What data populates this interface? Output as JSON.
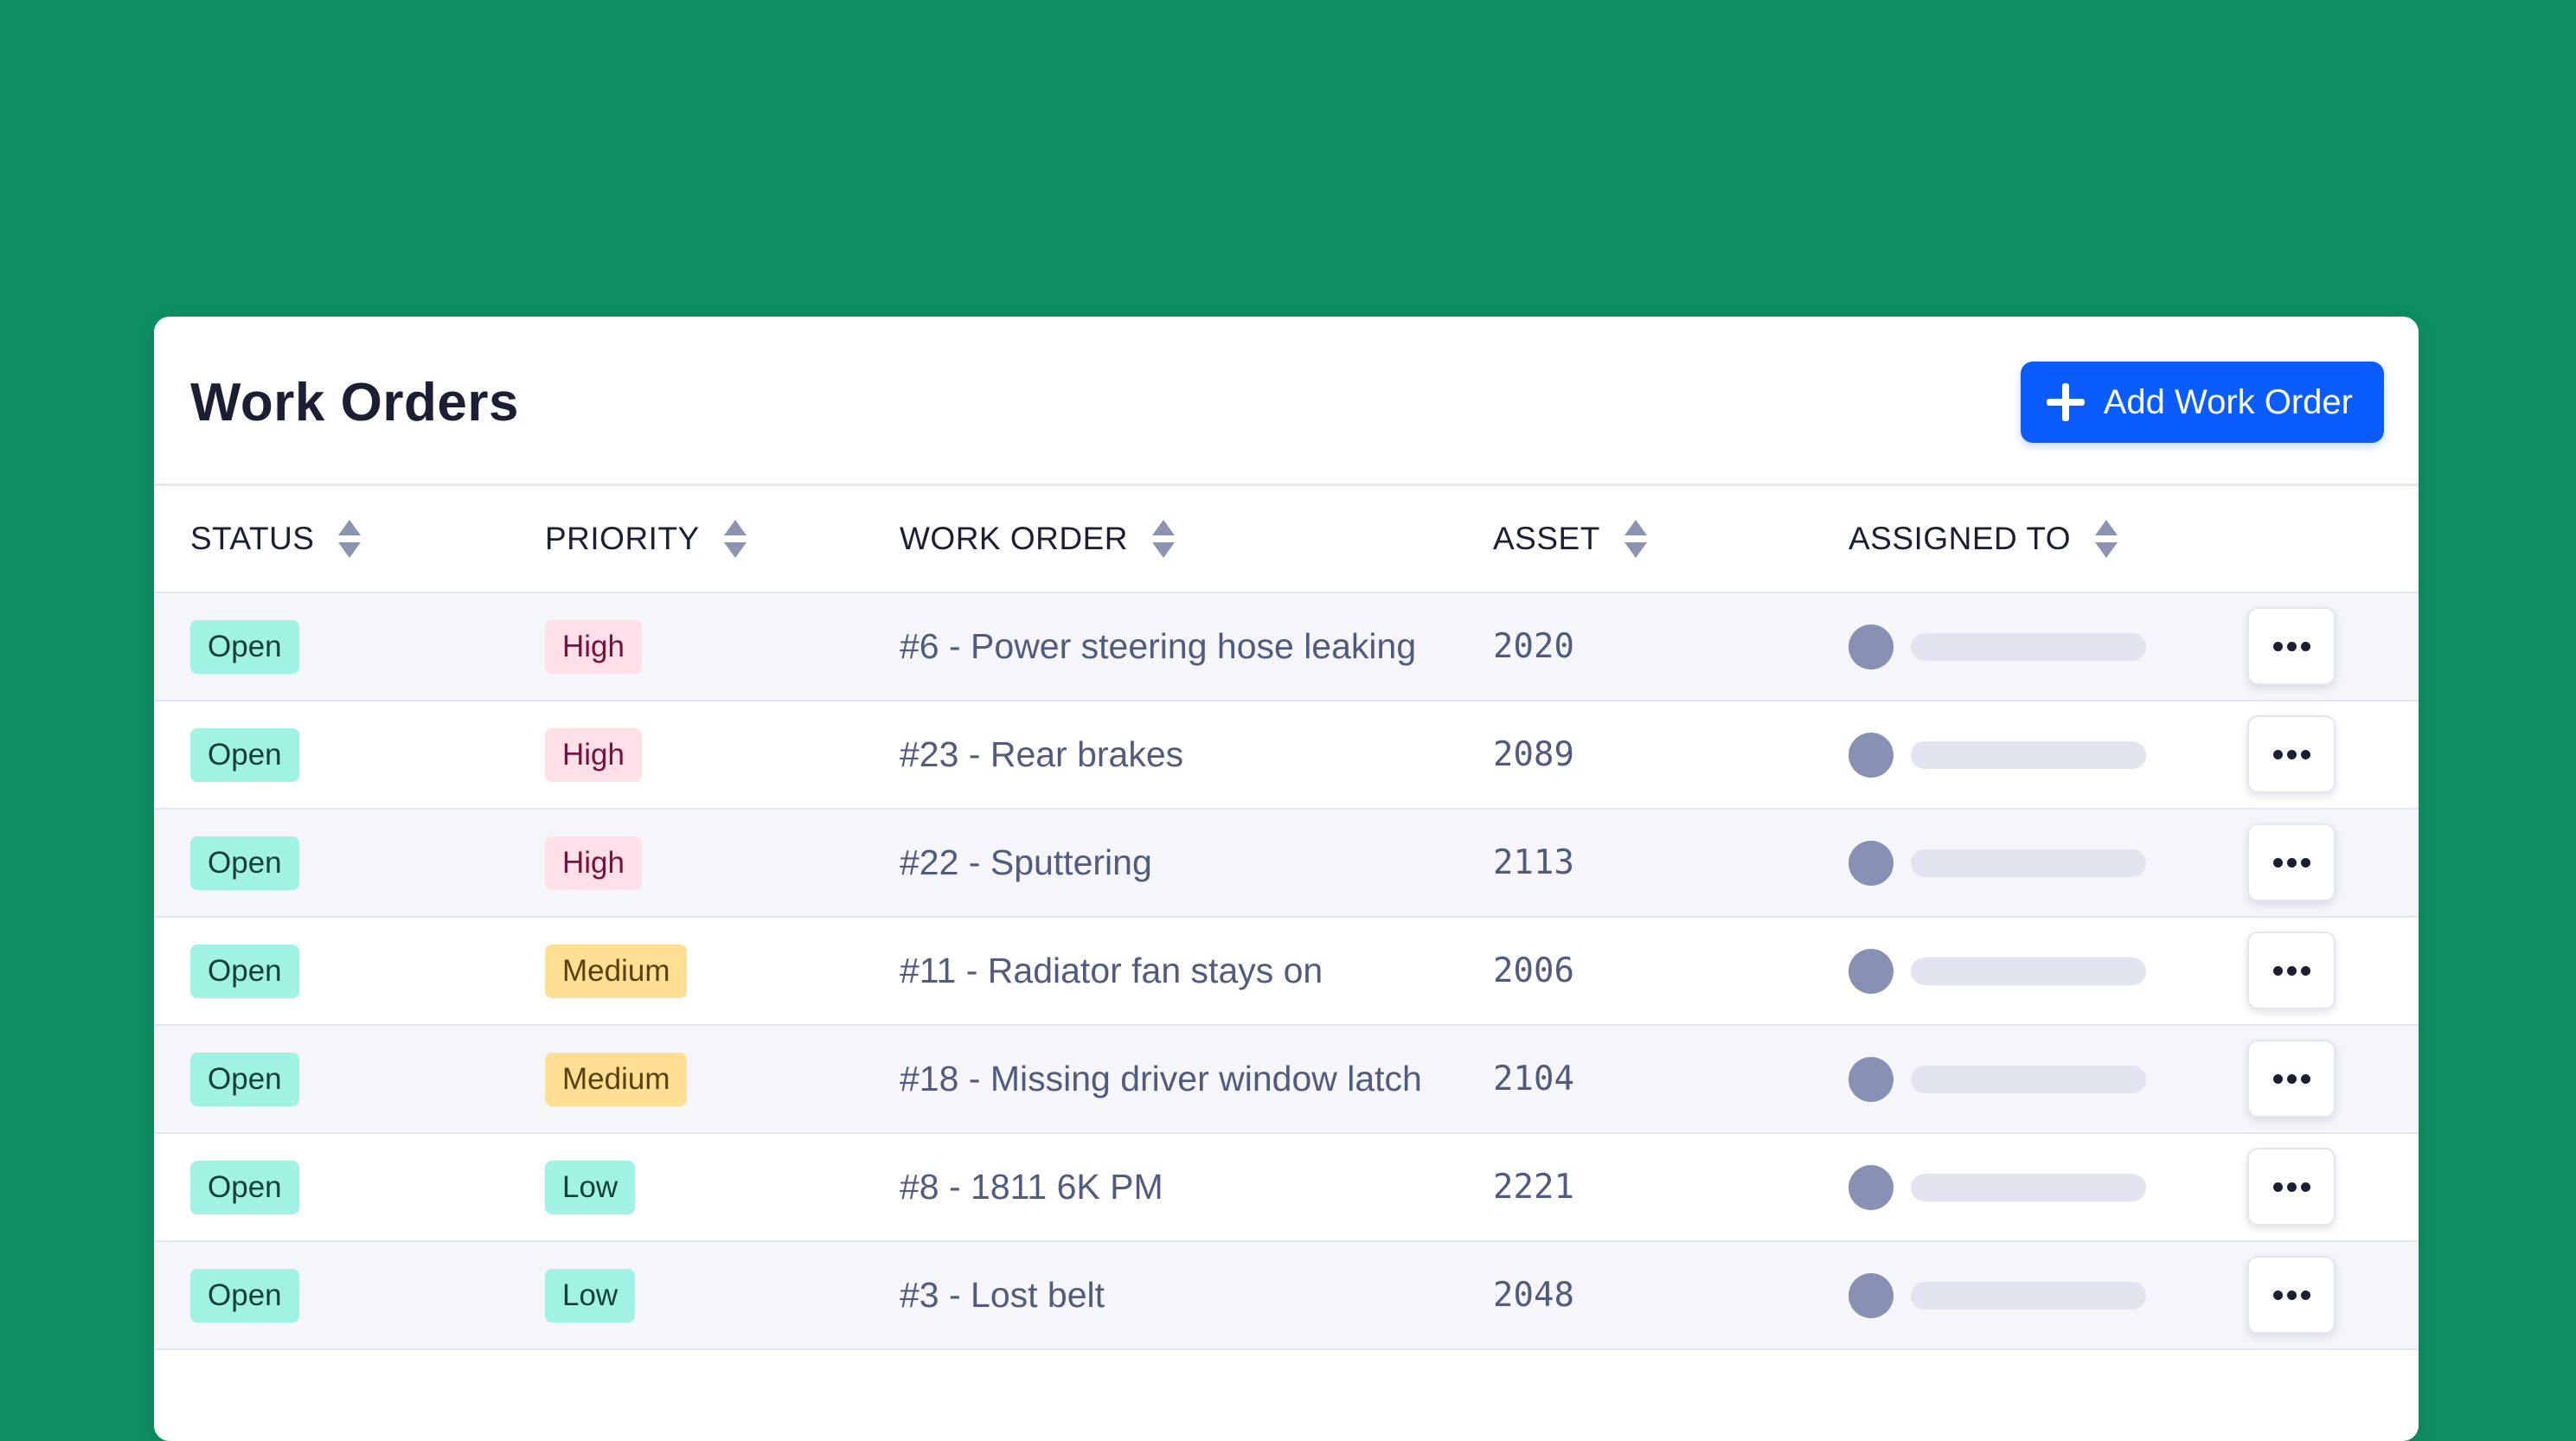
{
  "header": {
    "title": "Work Orders",
    "add_button_label": "Add Work Order"
  },
  "columns": [
    "STATUS",
    "PRIORITY",
    "WORK ORDER",
    "ASSET",
    "ASSIGNED TO"
  ],
  "rows": [
    {
      "status": "Open",
      "priority": "High",
      "work_order": "#6 - Power steering hose leaking",
      "asset": "2020"
    },
    {
      "status": "Open",
      "priority": "High",
      "work_order": "#23 - Rear brakes",
      "asset": "2089"
    },
    {
      "status": "Open",
      "priority": "High",
      "work_order": "#22 - Sputtering",
      "asset": "2113"
    },
    {
      "status": "Open",
      "priority": "Medium",
      "work_order": "#11 - Radiator fan stays on",
      "asset": "2006"
    },
    {
      "status": "Open",
      "priority": "Medium",
      "work_order": "#18 - Missing driver window latch",
      "asset": "2104"
    },
    {
      "status": "Open",
      "priority": "Low",
      "work_order": "#8 - 1811 6K PM",
      "asset": "2221"
    },
    {
      "status": "Open",
      "priority": "Low",
      "work_order": "#3 - Lost belt",
      "asset": "2048"
    }
  ],
  "colors": {
    "background": "#0e8f61",
    "accent": "#0a5cff",
    "status_open": "#a0f2e3",
    "priority_high": "#ffdfe8",
    "priority_medium": "#ffdf94",
    "priority_low": "#a0f2e3"
  },
  "icons": {
    "add": "plus-icon",
    "sort": "sort-icon",
    "more": "more-options-icon",
    "avatar": "avatar"
  }
}
